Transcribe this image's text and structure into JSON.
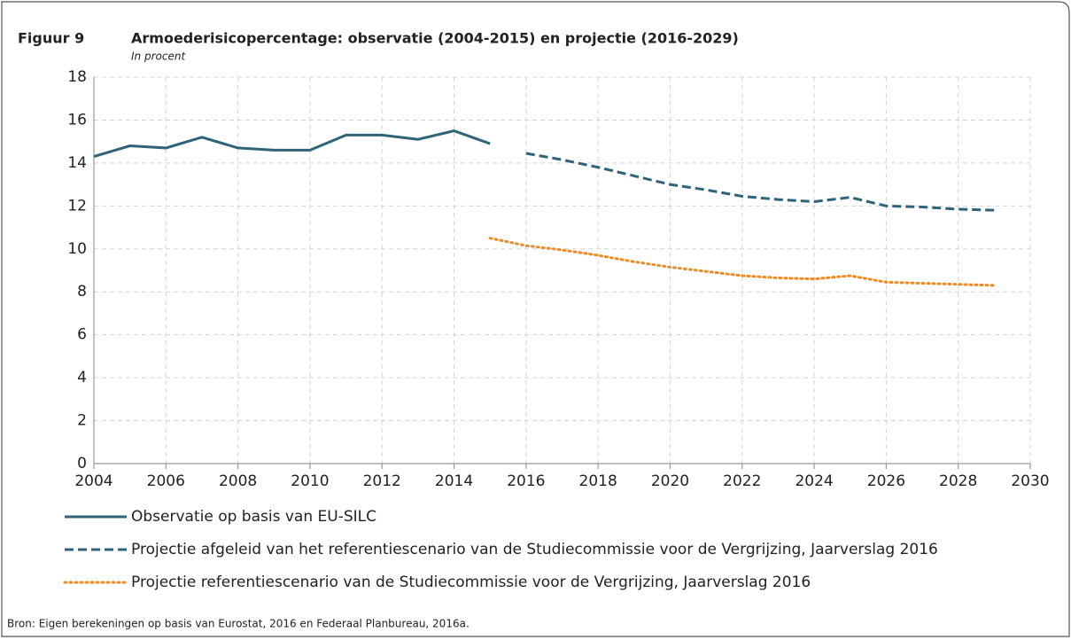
{
  "chart_data": {
    "type": "line",
    "figure_label": "Figuur 9",
    "title": "Armoederisicopercentage: observatie (2004-2015) en projectie (2016-2029)",
    "subtitle": "In procent",
    "x": [
      2004,
      2005,
      2006,
      2007,
      2008,
      2009,
      2010,
      2011,
      2012,
      2013,
      2014,
      2015,
      2016,
      2017,
      2018,
      2019,
      2020,
      2021,
      2022,
      2023,
      2024,
      2025,
      2026,
      2027,
      2028,
      2029
    ],
    "series": [
      {
        "name": "Observatie op basis van EU-SILC",
        "color": "#2f6478",
        "dash": "solid",
        "values": [
          14.3,
          14.8,
          14.7,
          15.2,
          14.7,
          14.6,
          14.6,
          15.3,
          15.3,
          15.1,
          15.5,
          14.9,
          null,
          null,
          null,
          null,
          null,
          null,
          null,
          null,
          null,
          null,
          null,
          null,
          null,
          null
        ]
      },
      {
        "name": "Projectie afgeleid van het referentiescenario van de Studiecommissie voor de Vergrijzing, Jaarverslag 2016",
        "color": "#2f6478",
        "dash": "dashed",
        "values": [
          null,
          null,
          null,
          null,
          null,
          null,
          null,
          null,
          null,
          null,
          null,
          null,
          14.45,
          14.15,
          13.8,
          13.4,
          13.0,
          12.75,
          12.45,
          12.3,
          12.2,
          12.4,
          12.0,
          11.95,
          11.85,
          11.8
        ]
      },
      {
        "name": "Projectie referentiescenario van de Studiecommissie voor de Vergrijzing, Jaarverslag 2016",
        "color": "#f08a24",
        "dash": "dotted",
        "values": [
          null,
          null,
          null,
          null,
          null,
          null,
          null,
          null,
          null,
          null,
          null,
          10.5,
          10.15,
          9.95,
          9.7,
          9.4,
          9.15,
          8.95,
          8.75,
          8.65,
          8.6,
          8.75,
          8.45,
          8.4,
          8.35,
          8.3
        ]
      }
    ],
    "xlim": [
      2004,
      2030
    ],
    "xticks": [
      2004,
      2006,
      2008,
      2010,
      2012,
      2014,
      2016,
      2018,
      2020,
      2022,
      2024,
      2026,
      2028,
      2030
    ],
    "ylim": [
      0,
      18
    ],
    "yticks": [
      0,
      2,
      4,
      6,
      8,
      10,
      12,
      14,
      16,
      18
    ],
    "grid": true,
    "source": "Bron: Eigen berekeningen op basis van Eurostat, 2016 en Federaal Planbureau, 2016a."
  }
}
